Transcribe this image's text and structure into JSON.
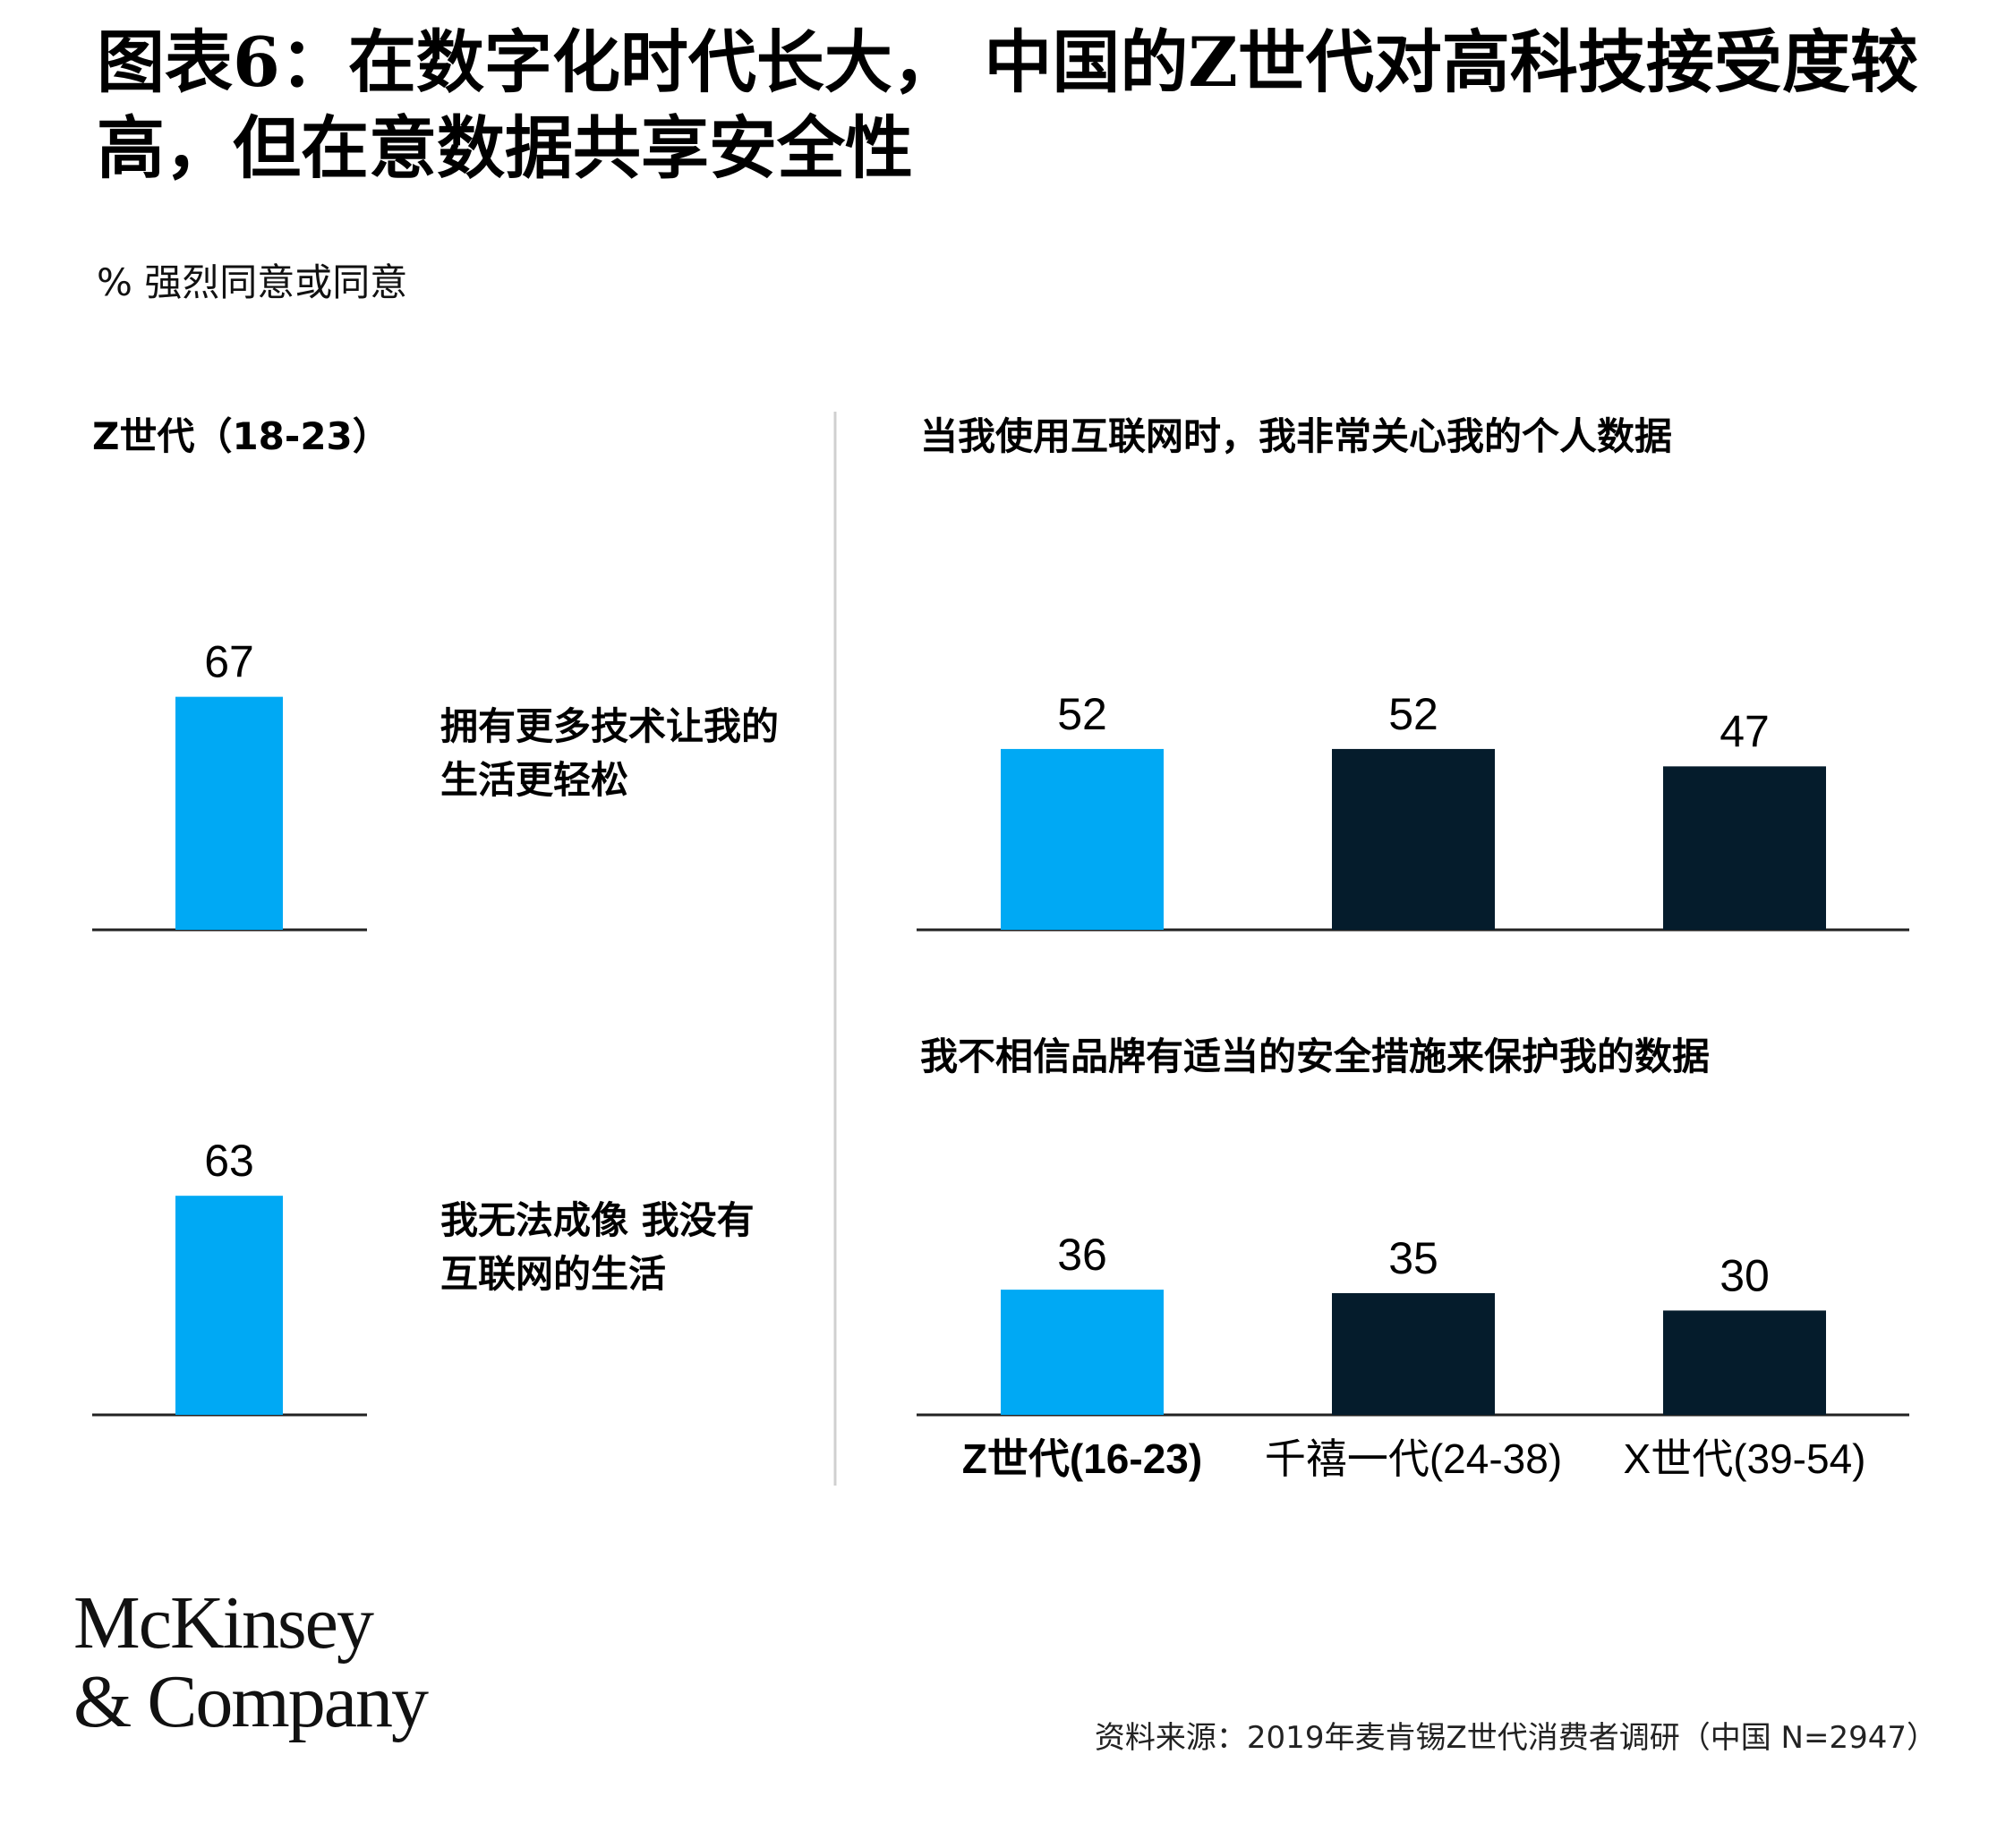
{
  "title": "图表6：在数字化时代长大， 中国的Z世代对高科技接受度较高，但在意数据共享安全性",
  "subtitle": "% 强烈同意或同意",
  "left_panel": {
    "title": "Z世代（18-23）",
    "labels": [
      "拥有更多技术让我的生活更轻松",
      "我无法成像 我没有互联网的生活"
    ]
  },
  "right_panel": {
    "titles": [
      "当我使用互联网时，我非常关心我的个人数据",
      "我不相信品牌有适当的安全措施来保护我的数据"
    ],
    "category_labels": [
      "Z世代(16-23)",
      "千禧一代(24-38)",
      "X世代(39-54)"
    ]
  },
  "colors": {
    "light_blue": "#00A9F4",
    "navy": "#051C2C",
    "axis": "#222222",
    "divider": "#d0d0d0"
  },
  "chart_data": [
    {
      "type": "bar",
      "title": "Z世代（18-23）",
      "categories": [
        "拥有更多技术让我的生活更轻松"
      ],
      "values": [
        67
      ],
      "ylim": [
        0,
        100
      ]
    },
    {
      "type": "bar",
      "title": "Z世代（18-23）",
      "categories": [
        "我无法成像 我没有互联网的生活"
      ],
      "values": [
        63
      ],
      "ylim": [
        0,
        100
      ]
    },
    {
      "type": "bar",
      "title": "当我使用互联网时，我非常关心我的个人数据",
      "categories": [
        "Z世代(16-23)",
        "千禧一代(24-38)",
        "X世代(39-54)"
      ],
      "values": [
        52,
        52,
        47
      ],
      "ylim": [
        0,
        100
      ]
    },
    {
      "type": "bar",
      "title": "我不相信品牌有适当的安全措施来保护我的数据",
      "categories": [
        "Z世代(16-23)",
        "千禧一代(24-38)",
        "X世代(39-54)"
      ],
      "values": [
        36,
        35,
        30
      ],
      "ylim": [
        0,
        100
      ]
    }
  ],
  "logo": {
    "line1": "McKinsey",
    "line2": "& Company"
  },
  "source": "资料来源：2019年麦肯锡Z世代消费者调研（中国 N=2947）"
}
